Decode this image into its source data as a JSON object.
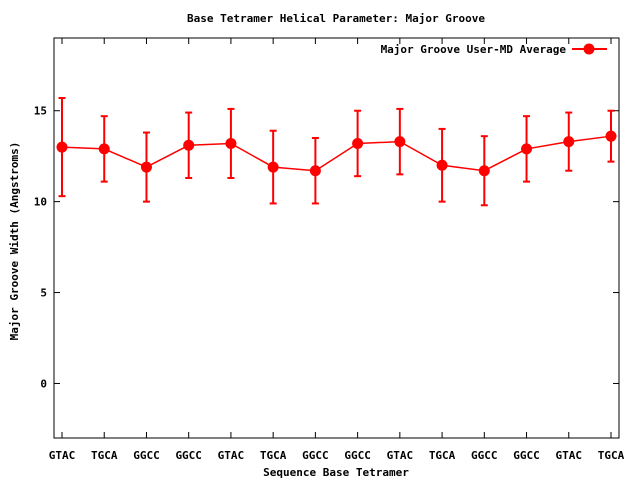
{
  "chart_data": {
    "type": "line",
    "title": "Base Tetramer Helical Parameter: Major Groove",
    "xlabel": "Sequence Base Tetramer",
    "ylabel": "Major Groove Width (Angstroms)",
    "categories": [
      "GTAC",
      "TGCA",
      "GGCC",
      "GGCC",
      "GTAC",
      "TGCA",
      "GGCC",
      "GGCC",
      "GTAC",
      "TGCA",
      "GGCC",
      "GGCC",
      "GTAC",
      "TGCA"
    ],
    "ylim": [
      -3,
      19
    ],
    "yticks": [
      0,
      5,
      10,
      15
    ],
    "grid": false,
    "legend_position": "top-right",
    "series": [
      {
        "name": "Major Groove User-MD Average",
        "color": "#ff0000",
        "values": [
          13.0,
          12.9,
          11.9,
          13.1,
          13.2,
          11.9,
          11.7,
          13.2,
          13.3,
          12.0,
          11.7,
          12.9,
          13.3,
          13.6
        ],
        "errors": [
          2.7,
          1.8,
          1.9,
          1.8,
          1.9,
          2.0,
          1.8,
          1.8,
          1.8,
          2.0,
          1.9,
          1.8,
          1.6,
          1.4
        ]
      }
    ]
  }
}
